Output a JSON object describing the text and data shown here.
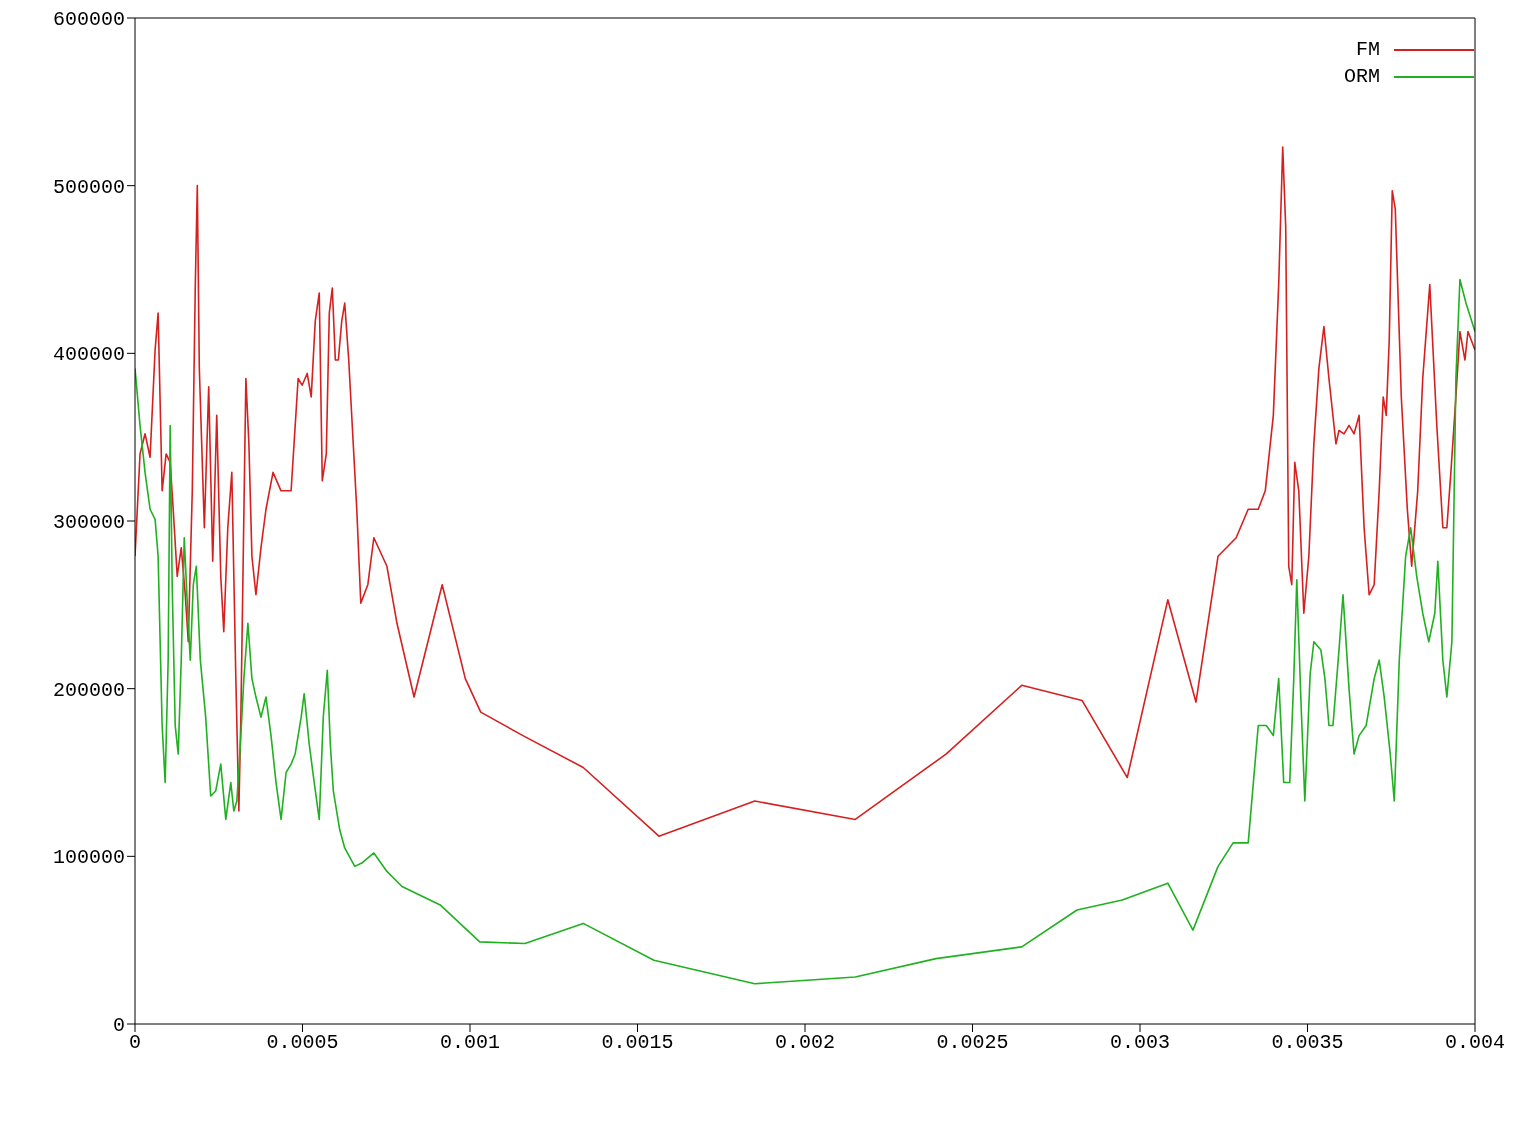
{
  "chart_data": {
    "type": "line",
    "xlim": [
      0,
      0.004
    ],
    "xticks": [
      0,
      0.0005,
      0.001,
      0.0015,
      0.002,
      0.0025,
      0.003,
      0.0035,
      0.004
    ],
    "ylim": [
      0,
      600000
    ],
    "yticks": [
      0,
      100000,
      200000,
      300000,
      400000,
      500000,
      600000
    ],
    "legend": "top right",
    "grid": false,
    "marker": "none",
    "line_style": "solid",
    "series": [
      {
        "name": "FM",
        "color": "#d62020",
        "x": [
          0,
          1.5e-05,
          3e-05,
          4.5e-05,
          6e-05,
          6.9e-05,
          8.1e-05,
          9.3e-05,
          0.000105,
          0.000114,
          0.000126,
          0.000138,
          0.00015,
          0.000159,
          0.000171,
          0.00018,
          0.000186,
          0.000192,
          0.000207,
          0.00022,
          0.000232,
          0.000244,
          0.000256,
          0.000265,
          0.000277,
          0.000289,
          0.000301,
          0.00031,
          0.000316,
          0.000331,
          0.00034,
          0.000349,
          0.000361,
          0.000376,
          0.000391,
          0.000412,
          0.000436,
          0.000466,
          0.000487,
          0.000499,
          0.000514,
          0.000526,
          0.000538,
          0.00055,
          0.000559,
          0.000571,
          0.00058,
          0.000589,
          0.000598,
          0.000607,
          0.000617,
          0.000626,
          0.000638,
          0.000662,
          0.000674,
          0.000695,
          0.000713,
          0.000752,
          0.000782,
          0.000833,
          0.000917,
          0.000986,
          0.001032,
          0.001158,
          0.001338,
          0.001564,
          0.00185,
          0.00215,
          0.002421,
          0.002647,
          0.002827,
          0.002962,
          0.003083,
          0.003167,
          0.003233,
          0.003287,
          0.003323,
          0.003353,
          0.003374,
          0.003398,
          0.003414,
          0.003426,
          0.003435,
          0.003444,
          0.003453,
          0.003462,
          0.003474,
          0.003489,
          0.003504,
          0.003519,
          0.003534,
          0.003549,
          0.003564,
          0.003585,
          0.003594,
          0.003609,
          0.003624,
          0.003639,
          0.003654,
          0.003669,
          0.003684,
          0.003699,
          0.003714,
          0.003726,
          0.003735,
          0.003744,
          0.003753,
          0.003762,
          0.00378,
          0.003798,
          0.003811,
          0.003829,
          0.003844,
          0.003865,
          0.003886,
          0.003904,
          0.003916,
          0.003928,
          0.003943,
          0.003955,
          0.00397,
          0.003979,
          0.004
        ],
        "values": [
          279000,
          340000,
          352000,
          338000,
          402000,
          424000,
          318000,
          340000,
          335000,
          307000,
          267000,
          284000,
          256000,
          228000,
          318000,
          441000,
          500000,
          391000,
          296000,
          380000,
          276000,
          363000,
          267000,
          234000,
          296000,
          329000,
          206000,
          127000,
          183000,
          385000,
          346000,
          279000,
          256000,
          284000,
          307000,
          329000,
          318000,
          318000,
          385000,
          381000,
          388000,
          374000,
          419000,
          436000,
          324000,
          340000,
          424000,
          439000,
          396000,
          396000,
          419000,
          430000,
          396000,
          307000,
          251000,
          262000,
          290000,
          273000,
          239000,
          195000,
          262000,
          206000,
          186000,
          172000,
          153000,
          112000,
          133000,
          122000,
          161000,
          202000,
          193000,
          147000,
          253000,
          192000,
          279000,
          290000,
          307000,
          307000,
          318000,
          363000,
          441000,
          523000,
          475000,
          273000,
          262000,
          335000,
          318000,
          245000,
          279000,
          346000,
          391000,
          416000,
          385000,
          346000,
          354000,
          352000,
          357000,
          352000,
          363000,
          296000,
          256000,
          262000,
          318000,
          374000,
          363000,
          408000,
          497000,
          486000,
          374000,
          307000,
          273000,
          318000,
          385000,
          441000,
          357000,
          296000,
          296000,
          329000,
          374000,
          413000,
          396000,
          413000,
          402000
        ]
      },
      {
        "name": "ORM",
        "color": "#20b020",
        "x": [
          0,
          1.5e-05,
          3e-05,
          4.5e-05,
          6e-05,
          6.9e-05,
          8.1e-05,
          9e-05,
          9.9e-05,
          0.000105,
          0.000111,
          0.00012,
          0.000129,
          0.000138,
          0.000147,
          0.000156,
          0.000165,
          0.000174,
          0.000183,
          0.000195,
          0.000211,
          0.000226,
          0.000241,
          0.000256,
          0.000271,
          0.000286,
          0.000295,
          0.000304,
          0.000313,
          0.000325,
          0.000337,
          0.000349,
          0.000361,
          0.000376,
          0.000391,
          0.000406,
          0.000421,
          0.000436,
          0.000451,
          0.000466,
          0.000478,
          0.000496,
          0.000505,
          0.00052,
          0.000535,
          0.00055,
          0.000562,
          0.000574,
          0.000583,
          0.000592,
          0.000611,
          0.000626,
          0.000656,
          0.000677,
          0.000713,
          0.000752,
          0.000797,
          0.000911,
          0.001029,
          0.001164,
          0.001338,
          0.001549,
          0.00185,
          0.00215,
          0.002391,
          0.002647,
          0.002812,
          0.002947,
          0.003083,
          0.003158,
          0.003233,
          0.003278,
          0.003323,
          0.003353,
          0.003377,
          0.003398,
          0.003414,
          0.003429,
          0.003447,
          0.003459,
          0.003468,
          0.00348,
          0.003492,
          0.003508,
          0.003519,
          0.00354,
          0.003552,
          0.003564,
          0.003576,
          0.003594,
          0.003606,
          0.003624,
          0.003639,
          0.003654,
          0.003675,
          0.003699,
          0.003714,
          0.003729,
          0.003747,
          0.003759,
          0.003774,
          0.003793,
          0.003808,
          0.003826,
          0.003844,
          0.003862,
          0.00388,
          0.003889,
          0.003904,
          0.003916,
          0.003931,
          0.003943,
          0.003955,
          0.003973,
          0.004
        ],
        "values": [
          391000,
          357000,
          329000,
          307000,
          301000,
          279000,
          178000,
          144000,
          217000,
          357000,
          262000,
          178000,
          161000,
          217000,
          290000,
          251000,
          217000,
          262000,
          273000,
          217000,
          183000,
          136000,
          139000,
          155000,
          122000,
          144000,
          127000,
          133000,
          161000,
          206000,
          239000,
          206000,
          195000,
          183000,
          195000,
          172000,
          144000,
          122000,
          150000,
          155000,
          161000,
          183000,
          197000,
          167000,
          144000,
          122000,
          183000,
          211000,
          167000,
          139000,
          116000,
          105000,
          94000,
          96000,
          102000,
          91000,
          82000,
          71000,
          49000,
          48000,
          60000,
          38000,
          24000,
          28000,
          39000,
          46000,
          68000,
          74000,
          84000,
          56000,
          94000,
          108000,
          108000,
          178000,
          178000,
          172000,
          206000,
          144000,
          144000,
          206000,
          265000,
          195000,
          133000,
          209000,
          228000,
          223000,
          206000,
          178000,
          178000,
          223000,
          256000,
          200000,
          161000,
          172000,
          178000,
          206000,
          217000,
          195000,
          161000,
          133000,
          217000,
          279000,
          296000,
          267000,
          245000,
          228000,
          245000,
          276000,
          217000,
          195000,
          228000,
          385000,
          444000,
          430000,
          413000
        ]
      }
    ]
  }
}
